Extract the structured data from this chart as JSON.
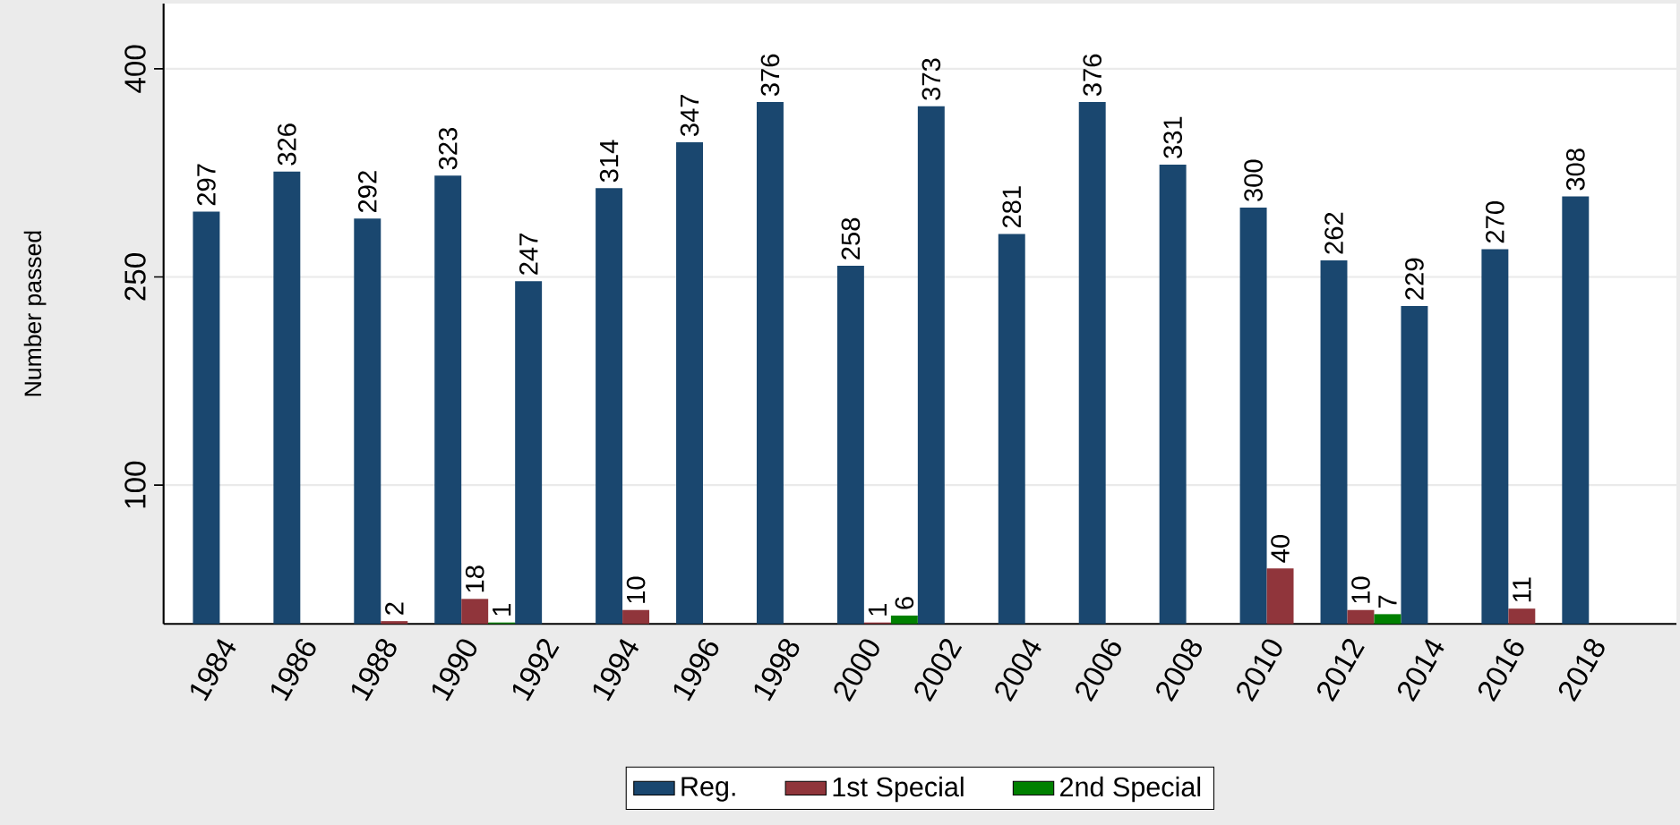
{
  "chart_data": {
    "type": "bar",
    "ylabel": "Number passed",
    "categories": [
      "1984",
      "1986",
      "1988",
      "1990",
      "1992",
      "1994",
      "1996",
      "1998",
      "2000",
      "2002",
      "2004",
      "2006",
      "2008",
      "2010",
      "2012",
      "2014",
      "2016",
      "2018"
    ],
    "series": [
      {
        "name": "Reg.",
        "color": "#1a476f",
        "values": [
          297,
          326,
          292,
          323,
          247,
          314,
          347,
          376,
          258,
          373,
          281,
          376,
          331,
          300,
          262,
          229,
          270,
          308
        ]
      },
      {
        "name": "1st Special",
        "color": "#90353b",
        "values": [
          null,
          null,
          2,
          18,
          null,
          10,
          null,
          null,
          1,
          null,
          null,
          null,
          null,
          40,
          10,
          null,
          11,
          null
        ]
      },
      {
        "name": "2nd Special",
        "color": "#008000",
        "values": [
          null,
          null,
          null,
          1,
          null,
          null,
          null,
          null,
          6,
          null,
          null,
          null,
          null,
          null,
          7,
          null,
          null,
          null
        ]
      }
    ],
    "ylim": [
      0,
      447
    ],
    "yticks": [
      100,
      250,
      400
    ],
    "grid": "y",
    "legend": "bottom",
    "data_labels": true
  }
}
